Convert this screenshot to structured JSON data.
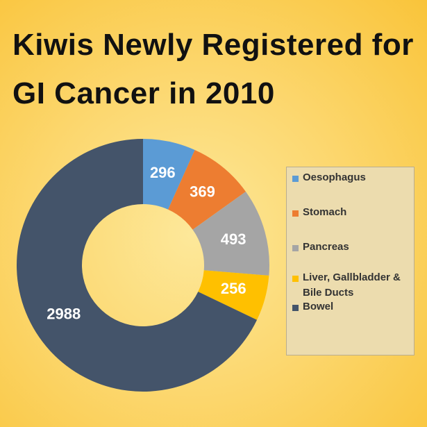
{
  "chart_data": {
    "type": "donut",
    "title": "Kiwis Newly Registered for GI Cancer in 2010",
    "categories": [
      "Oesophagus",
      "Stomach",
      "Pancreas",
      "Liver, Gallbladder & Bile Ducts",
      "Bowel"
    ],
    "values": [
      296,
      369,
      493,
      256,
      2988
    ],
    "colors": [
      "#5b9bd5",
      "#ed7d31",
      "#a5a5a5",
      "#ffc000",
      "#44546a"
    ],
    "legend": "right"
  }
}
